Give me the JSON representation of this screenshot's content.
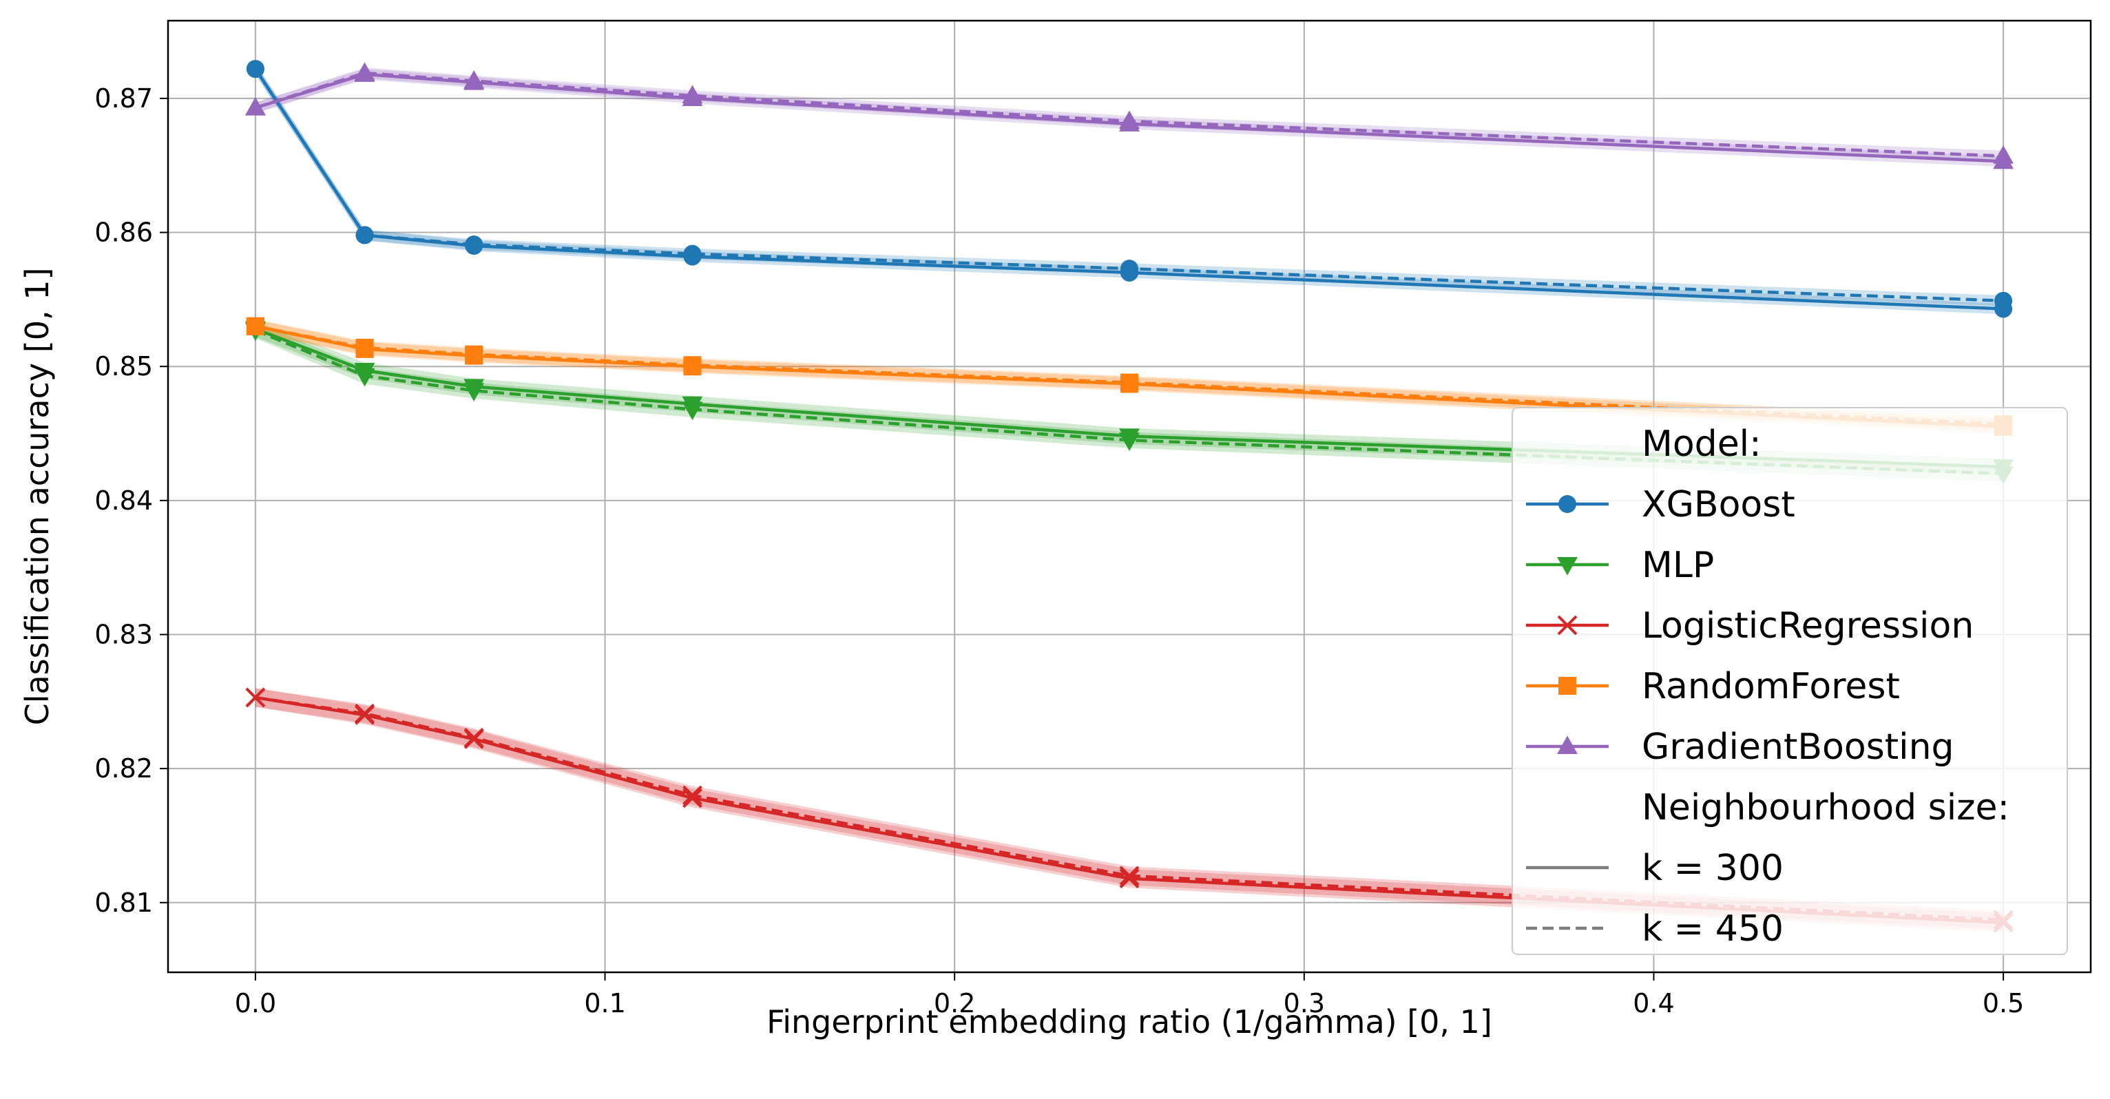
{
  "chart_data": {
    "type": "line",
    "title": "",
    "xlabel": "Fingerprint embedding ratio (1/gamma) [0, 1]",
    "ylabel": "Classification accuracy [0, 1]",
    "xlim": [
      -0.025,
      0.525
    ],
    "ylim": [
      0.8048,
      0.8758
    ],
    "x_ticks": [
      0.0,
      0.1,
      0.2,
      0.3,
      0.4,
      0.5
    ],
    "x_tick_labels": [
      "0.0",
      "0.1",
      "0.2",
      "0.3",
      "0.4",
      "0.5"
    ],
    "y_ticks": [
      0.81,
      0.82,
      0.83,
      0.84,
      0.85,
      0.86,
      0.87
    ],
    "y_tick_labels": [
      "0.81",
      "0.82",
      "0.83",
      "0.84",
      "0.85",
      "0.86",
      "0.87"
    ],
    "grid": true,
    "legend_position": "bottom-right",
    "legend_title_model": "Model:",
    "legend_title_k": "Neighbourhood size:",
    "x": [
      0.0,
      0.03125,
      0.0625,
      0.125,
      0.25,
      0.5
    ],
    "series": [
      {
        "name": "XGBoost",
        "color": "#1f77b4",
        "marker": "circle",
        "k300": [
          0.8722,
          0.8598,
          0.859,
          0.8582,
          0.857,
          0.8543
        ],
        "k450": [
          0.8722,
          0.8598,
          0.8591,
          0.8584,
          0.8573,
          0.8549
        ],
        "band": 0.0004
      },
      {
        "name": "MLP",
        "color": "#2ca02c",
        "marker": "triangle-down",
        "k300": [
          0.8528,
          0.8497,
          0.8485,
          0.8472,
          0.8448,
          0.8425
        ],
        "k450": [
          0.8527,
          0.8493,
          0.8482,
          0.8468,
          0.8445,
          0.842
        ],
        "band": 0.0006
      },
      {
        "name": "LogisticRegression",
        "color": "#d62728",
        "marker": "x",
        "k300": [
          0.8253,
          0.824,
          0.8222,
          0.8178,
          0.8118,
          0.8085
        ],
        "k450": [
          0.8253,
          0.8241,
          0.8223,
          0.818,
          0.812,
          0.8087
        ],
        "band": 0.0007
      },
      {
        "name": "RandomForest",
        "color": "#ff7f0e",
        "marker": "square",
        "k300": [
          0.853,
          0.8513,
          0.8508,
          0.85,
          0.8487,
          0.8455
        ],
        "k450": [
          0.853,
          0.8514,
          0.8509,
          0.8501,
          0.8488,
          0.8457
        ],
        "band": 0.0005
      },
      {
        "name": "GradientBoosting",
        "color": "#9467bd",
        "marker": "triangle-up",
        "k300": [
          0.8693,
          0.8718,
          0.8712,
          0.87,
          0.8681,
          0.8653
        ],
        "k450": [
          0.8693,
          0.8719,
          0.8713,
          0.8702,
          0.8683,
          0.8657
        ],
        "band": 0.0004
      }
    ],
    "line_styles": [
      {
        "label": "k = 300",
        "style": "solid",
        "color": "#7f7f7f"
      },
      {
        "label": "k = 450",
        "style": "dashed",
        "color": "#7f7f7f"
      }
    ]
  }
}
